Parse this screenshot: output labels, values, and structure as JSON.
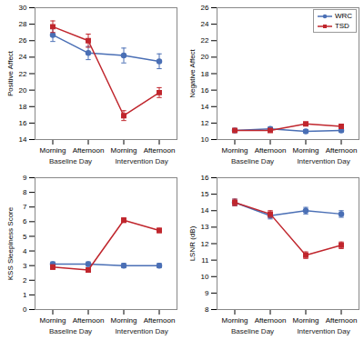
{
  "chart_data": [
    {
      "type": "line",
      "y_label": "Positive Affect",
      "categories": [
        "Morning",
        "Afternoon",
        "Morning",
        "Afternoon"
      ],
      "category_groups": [
        "Baseline Day",
        "Baseline Day",
        "Intervention Day",
        "Intervention Day"
      ],
      "ylim": [
        14,
        30
      ],
      "yticks": [
        14,
        16,
        18,
        20,
        22,
        24,
        26,
        28,
        30
      ],
      "series": [
        {
          "name": "WRC",
          "color": "#4a6fb5",
          "marker": "circle",
          "values": [
            26.7,
            24.5,
            24.2,
            23.5
          ],
          "errors": [
            0.8,
            0.8,
            0.9,
            0.9
          ]
        },
        {
          "name": "TSD",
          "color": "#c0262d",
          "marker": "square",
          "values": [
            27.7,
            26.0,
            16.9,
            19.7
          ],
          "errors": [
            0.7,
            0.8,
            0.6,
            0.6
          ]
        }
      ]
    },
    {
      "type": "line",
      "y_label": "Negative Affect",
      "legend": "top-right",
      "categories": [
        "Morning",
        "Afternoon",
        "Morning",
        "Afternoon"
      ],
      "category_groups": [
        "Baseline Day",
        "Baseline Day",
        "Intervention Day",
        "Intervention Day"
      ],
      "ylim": [
        10,
        26
      ],
      "yticks": [
        10,
        12,
        14,
        16,
        18,
        20,
        22,
        24,
        26
      ],
      "series": [
        {
          "name": "WRC",
          "color": "#4a6fb5",
          "marker": "circle",
          "values": [
            11.1,
            11.3,
            11.0,
            11.1
          ],
          "errors": [
            0.2,
            0.2,
            0.2,
            0.2
          ]
        },
        {
          "name": "TSD",
          "color": "#c0262d",
          "marker": "square",
          "values": [
            11.1,
            11.1,
            11.9,
            11.6
          ],
          "errors": [
            0.2,
            0.2,
            0.2,
            0.2
          ]
        }
      ]
    },
    {
      "type": "line",
      "y_label": "KSS Sleepiness Score",
      "categories": [
        "Morning",
        "Afternoon",
        "Morning",
        "Afternoon"
      ],
      "category_groups": [
        "Baseline Day",
        "Baseline Day",
        "Intervention Day",
        "Intervention Day"
      ],
      "ylim": [
        0,
        9
      ],
      "yticks": [
        0,
        1,
        2,
        3,
        4,
        5,
        6,
        7,
        8,
        9
      ],
      "series": [
        {
          "name": "WRC",
          "color": "#4a6fb5",
          "marker": "circle",
          "values": [
            3.1,
            3.1,
            3.0,
            3.0
          ],
          "errors": [
            0.15,
            0.15,
            0.15,
            0.15
          ]
        },
        {
          "name": "TSD",
          "color": "#c0262d",
          "marker": "square",
          "values": [
            2.9,
            2.7,
            6.1,
            5.4
          ],
          "errors": [
            0.15,
            0.15,
            0.15,
            0.15
          ]
        }
      ]
    },
    {
      "type": "line",
      "y_label": "LSNR (dB)",
      "categories": [
        "Morning",
        "Afternoon",
        "Morning",
        "Afternoon"
      ],
      "category_groups": [
        "Baseline Day",
        "Baseline Day",
        "Intervention Day",
        "Intervention Day"
      ],
      "ylim": [
        8,
        16
      ],
      "yticks": [
        8,
        9,
        10,
        11,
        12,
        13,
        14,
        15,
        16
      ],
      "series": [
        {
          "name": "WRC",
          "color": "#4a6fb5",
          "marker": "circle",
          "values": [
            14.5,
            13.7,
            14.0,
            13.8
          ],
          "errors": [
            0.2,
            0.2,
            0.2,
            0.2
          ]
        },
        {
          "name": "TSD",
          "color": "#c0262d",
          "marker": "square",
          "values": [
            14.5,
            13.8,
            11.3,
            11.9
          ],
          "errors": [
            0.2,
            0.2,
            0.2,
            0.2
          ]
        }
      ]
    }
  ]
}
